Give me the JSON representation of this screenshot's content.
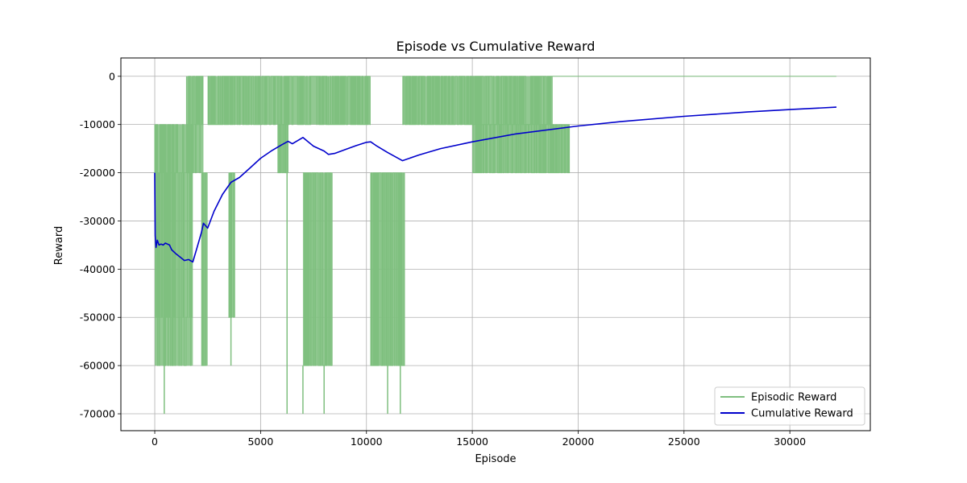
{
  "chart_data": {
    "type": "line",
    "title": "Episode vs Cumulative Reward",
    "xlabel": "Episode",
    "ylabel": "Reward",
    "xlim": [
      -1600,
      33800
    ],
    "ylim": [
      -73500,
      3800
    ],
    "xticks": [
      0,
      5000,
      10000,
      15000,
      20000,
      25000,
      30000
    ],
    "yticks": [
      0,
      -10000,
      -20000,
      -30000,
      -40000,
      -50000,
      -60000,
      -70000
    ],
    "grid": true,
    "legend_position": "lower-right",
    "series": [
      {
        "name": "Episodic Reward",
        "color": "#7fbf7f",
        "segments": [
          {
            "x0": 0,
            "x1": 1800,
            "levels": [
              -10000,
              -20000,
              -50000,
              -60000
            ],
            "spikes": [
              {
                "x": 450,
                "y": -70000
              }
            ]
          },
          {
            "x0": 1500,
            "x1": 2300,
            "levels": [
              0,
              -10000,
              -20000
            ]
          },
          {
            "x0": 2200,
            "x1": 2500,
            "levels": [
              -20000,
              -60000
            ]
          },
          {
            "x0": 2500,
            "x1": 7100,
            "levels": [
              0,
              -10000
            ]
          },
          {
            "x0": 3500,
            "x1": 3800,
            "levels": [
              -20000,
              -50000
            ],
            "spikes": [
              {
                "x": 3600,
                "y": -60000
              }
            ]
          },
          {
            "x0": 5800,
            "x1": 6300,
            "levels": [
              -20000,
              -10000
            ],
            "spikes": [
              {
                "x": 6250,
                "y": -70000
              }
            ]
          },
          {
            "x0": 7000,
            "x1": 8400,
            "levels": [
              -20000,
              -60000
            ],
            "spikes": [
              {
                "x": 7000,
                "y": -70000
              },
              {
                "x": 8000,
                "y": -70000
              }
            ]
          },
          {
            "x0": 7100,
            "x1": 8200,
            "levels": [
              0,
              -10000
            ]
          },
          {
            "x0": 8200,
            "x1": 10200,
            "levels": [
              0,
              -10000
            ]
          },
          {
            "x0": 10200,
            "x1": 11800,
            "levels": [
              -20000,
              -60000
            ],
            "spikes": [
              {
                "x": 11000,
                "y": -70000
              },
              {
                "x": 11600,
                "y": -70000
              }
            ]
          },
          {
            "x0": 11700,
            "x1": 18800,
            "levels": [
              0,
              -10000
            ]
          },
          {
            "x0": 15000,
            "x1": 19600,
            "levels": [
              -10000,
              -20000
            ]
          },
          {
            "x0": 18800,
            "x1": 32200,
            "levels": [
              0
            ]
          }
        ]
      },
      {
        "name": "Cumulative Reward",
        "color": "#0000cc",
        "points": [
          [
            0,
            -20000
          ],
          [
            20,
            -33000
          ],
          [
            60,
            -35500
          ],
          [
            120,
            -34000
          ],
          [
            200,
            -35000
          ],
          [
            300,
            -34800
          ],
          [
            400,
            -35000
          ],
          [
            500,
            -34600
          ],
          [
            600,
            -34800
          ],
          [
            700,
            -35000
          ],
          [
            800,
            -36000
          ],
          [
            1000,
            -36800
          ],
          [
            1200,
            -37500
          ],
          [
            1400,
            -38200
          ],
          [
            1600,
            -38000
          ],
          [
            1800,
            -38500
          ],
          [
            2000,
            -35500
          ],
          [
            2200,
            -32500
          ],
          [
            2300,
            -30500
          ],
          [
            2500,
            -31500
          ],
          [
            2800,
            -28000
          ],
          [
            3200,
            -24500
          ],
          [
            3600,
            -22000
          ],
          [
            4000,
            -21000
          ],
          [
            4500,
            -19000
          ],
          [
            5000,
            -17000
          ],
          [
            5500,
            -15500
          ],
          [
            6000,
            -14200
          ],
          [
            6300,
            -13500
          ],
          [
            6500,
            -14000
          ],
          [
            7000,
            -12700
          ],
          [
            7500,
            -14500
          ],
          [
            8000,
            -15500
          ],
          [
            8200,
            -16200
          ],
          [
            8500,
            -16000
          ],
          [
            9000,
            -15200
          ],
          [
            9500,
            -14400
          ],
          [
            10000,
            -13700
          ],
          [
            10200,
            -13600
          ],
          [
            10500,
            -14500
          ],
          [
            11000,
            -15800
          ],
          [
            11700,
            -17500
          ],
          [
            12500,
            -16300
          ],
          [
            13500,
            -15000
          ],
          [
            15000,
            -13600
          ],
          [
            17000,
            -12000
          ],
          [
            20000,
            -10300
          ],
          [
            22000,
            -9400
          ],
          [
            25000,
            -8300
          ],
          [
            28000,
            -7400
          ],
          [
            30000,
            -6900
          ],
          [
            32200,
            -6400
          ]
        ]
      }
    ]
  }
}
